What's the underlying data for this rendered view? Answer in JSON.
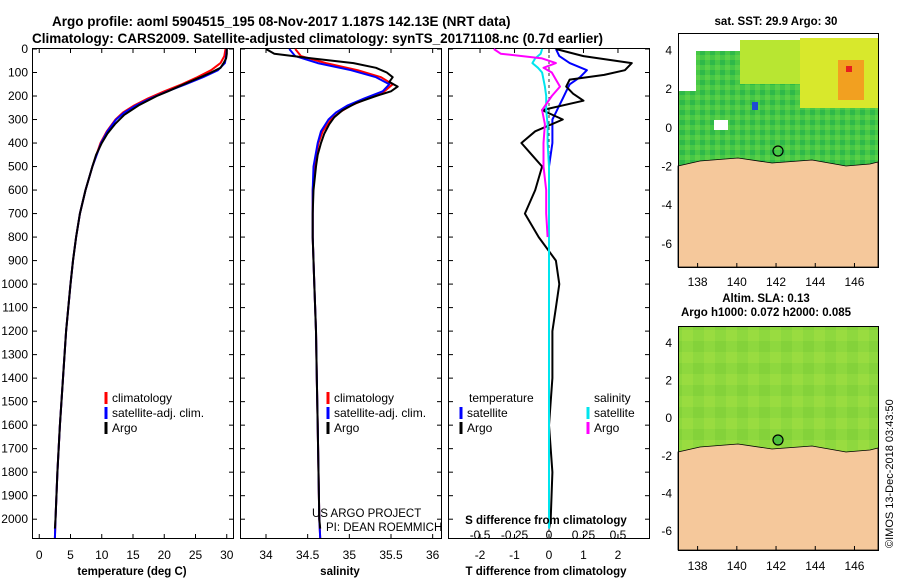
{
  "title": {
    "line1": "Argo profile: aoml 5904515_195 08-Nov-2017 1.187S 142.13E (NRT data)",
    "line2": "Climatology: CARS2009. Satellite-adjusted climatology: synTS_20171108.nc (0.7d earlier)"
  },
  "credit": {
    "line1": "US ARGO PROJECT",
    "line2": "PI: DEAN ROEMMICH"
  },
  "imos_stamp": "©IMOS 13-Dec-2018 03:43:50",
  "colors": {
    "climatology": "#ff0000",
    "satellite": "#0000ff",
    "argo": "#000000",
    "s_satellite": "#00e5ee",
    "s_argo": "#ff00ff",
    "land": "#f5c89b",
    "sea": "#7cd43a"
  },
  "maps": {
    "sst": {
      "title": "sat. SST: 29.9 Argo: 30",
      "float_marker": "dark green circle"
    },
    "sla": {
      "title_line1": "Altim. SLA: 0.13",
      "title_line2": "Argo h1000: 0.072 h2000: 0.085",
      "float_marker": "dark green circle"
    },
    "x_ticks": [
      "138",
      "140",
      "142",
      "144",
      "146"
    ],
    "y_ticks": [
      "4",
      "2",
      "0",
      "-2",
      "-4",
      "-6"
    ]
  },
  "chart_data": [
    {
      "type": "line",
      "panel": "temperature",
      "xlabel": "temperature (deg C)",
      "ylabel": "",
      "xlim": [
        -1,
        31
      ],
      "ylim": [
        2080,
        0
      ],
      "x_ticks": [
        "0",
        "5",
        "10",
        "15",
        "20",
        "25",
        "30"
      ],
      "y_ticks": [
        "0",
        "100",
        "200",
        "300",
        "400",
        "500",
        "600",
        "700",
        "800",
        "900",
        "1000",
        "1100",
        "1200",
        "1300",
        "1400",
        "1500",
        "1600",
        "1700",
        "1800",
        "1900",
        "2000"
      ],
      "legend": {
        "placement": "lower-middle",
        "entries": [
          "climatology",
          "satellite-adj. clim.",
          "Argo"
        ]
      },
      "series": [
        {
          "name": "climatology",
          "color": "#ff0000",
          "depth": [
            0,
            30,
            60,
            90,
            120,
            150,
            180,
            210,
            240,
            270,
            300,
            350,
            400,
            500,
            600,
            700,
            800,
            900,
            1000,
            1200,
            1400,
            1600,
            1800,
            2000,
            2080
          ],
          "values": [
            29.8,
            29.6,
            29.0,
            27.5,
            25.3,
            22.8,
            20.0,
            17.4,
            15.2,
            13.4,
            12.2,
            10.8,
            9.8,
            8.5,
            7.4,
            6.5,
            5.9,
            5.4,
            5.0,
            4.3,
            3.8,
            3.3,
            2.9,
            2.6,
            2.5
          ]
        },
        {
          "name": "satellite-adj. clim.",
          "color": "#0000ff",
          "depth": [
            0,
            30,
            60,
            90,
            120,
            150,
            180,
            210,
            240,
            270,
            300,
            350,
            400,
            500,
            600,
            700,
            800,
            900,
            1000,
            1200,
            1400,
            1600,
            1800,
            2000,
            2080
          ],
          "values": [
            30.0,
            29.9,
            29.7,
            28.6,
            26.2,
            23.4,
            20.5,
            17.8,
            15.5,
            13.6,
            12.3,
            10.9,
            9.9,
            8.5,
            7.4,
            6.5,
            5.9,
            5.4,
            5.0,
            4.3,
            3.8,
            3.3,
            2.9,
            2.6,
            2.5
          ]
        },
        {
          "name": "Argo",
          "color": "#000000",
          "depth": [
            0,
            20,
            40,
            60,
            80,
            100,
            120,
            140,
            160,
            180,
            200,
            240,
            280,
            320,
            360,
            400,
            450,
            500,
            600,
            700,
            800,
            900,
            1000,
            1200,
            1400,
            1600,
            1800,
            2000,
            2040
          ],
          "values": [
            30.0,
            30.0,
            29.9,
            29.5,
            29.0,
            27.5,
            25.8,
            24.0,
            22.3,
            20.6,
            18.8,
            15.9,
            13.6,
            12.1,
            10.9,
            10.0,
            9.1,
            8.5,
            7.4,
            6.5,
            5.9,
            5.4,
            5.0,
            4.3,
            3.8,
            3.3,
            2.9,
            2.6,
            2.5
          ]
        }
      ]
    },
    {
      "type": "line",
      "panel": "salinity",
      "xlabel": "salinity",
      "ylabel": "",
      "xlim": [
        33.7,
        36.1
      ],
      "ylim": [
        2080,
        0
      ],
      "x_ticks": [
        "34",
        "34.5",
        "35",
        "35.5",
        "36"
      ],
      "legend": {
        "placement": "lower-middle",
        "entries": [
          "climatology",
          "satellite-adj. clim.",
          "Argo"
        ]
      },
      "series": [
        {
          "name": "climatology",
          "color": "#ff0000",
          "depth": [
            0,
            30,
            60,
            90,
            120,
            150,
            180,
            210,
            240,
            270,
            300,
            350,
            400,
            500,
            600,
            700,
            800,
            900,
            1000,
            1200,
            1400,
            1600,
            1800,
            2000,
            2080
          ],
          "values": [
            34.35,
            34.42,
            34.72,
            35.1,
            35.38,
            35.52,
            35.42,
            35.22,
            35.02,
            34.88,
            34.78,
            34.68,
            34.63,
            34.58,
            34.56,
            34.56,
            34.56,
            34.57,
            34.58,
            34.6,
            34.61,
            34.62,
            34.63,
            34.64,
            34.65
          ]
        },
        {
          "name": "satellite-adj. clim.",
          "color": "#0000ff",
          "depth": [
            0,
            30,
            60,
            90,
            120,
            150,
            180,
            210,
            240,
            270,
            300,
            350,
            400,
            500,
            600,
            700,
            800,
            900,
            1000,
            1200,
            1400,
            1600,
            1800,
            2000,
            2080
          ],
          "values": [
            34.28,
            34.35,
            34.62,
            35.02,
            35.32,
            35.48,
            35.4,
            35.18,
            34.98,
            34.84,
            34.75,
            34.66,
            34.62,
            34.57,
            34.56,
            34.56,
            34.56,
            34.57,
            34.58,
            34.6,
            34.61,
            34.62,
            34.63,
            34.64,
            34.65
          ]
        },
        {
          "name": "Argo",
          "color": "#000000",
          "depth": [
            0,
            20,
            40,
            60,
            80,
            100,
            120,
            140,
            160,
            180,
            200,
            230,
            260,
            290,
            320,
            360,
            400,
            450,
            500,
            600,
            700,
            800,
            900,
            1000,
            1200,
            1400,
            1600,
            1800,
            2000,
            2040
          ],
          "values": [
            34.0,
            34.1,
            34.55,
            35.05,
            35.32,
            35.45,
            35.52,
            35.48,
            35.58,
            35.5,
            35.32,
            35.08,
            34.92,
            34.82,
            34.76,
            34.7,
            34.66,
            34.62,
            34.6,
            34.57,
            34.56,
            34.56,
            34.57,
            34.58,
            34.6,
            34.61,
            34.62,
            34.63,
            34.64,
            34.65
          ]
        }
      ]
    },
    {
      "type": "line",
      "panel": "difference",
      "xlabel": "T difference from climatology",
      "ylabel": "",
      "top_label": "S difference from climatology",
      "xlim": [
        -2.9,
        2.9
      ],
      "ylim": [
        2080,
        0
      ],
      "x_ticks": [
        "-2",
        "-1",
        "0",
        "1",
        "2"
      ],
      "x_ticks_top": [
        "-0.5",
        "-0.25",
        "0",
        "0.25",
        "0.5"
      ],
      "legend_left": {
        "title": "temperature",
        "entries": [
          "satellite",
          "Argo"
        ]
      },
      "legend_right": {
        "title": "salinity",
        "entries": [
          "satellite",
          "Argo"
        ]
      },
      "series": [
        {
          "name": "temperature satellite",
          "color": "#0000ff",
          "depth": [
            0,
            30,
            60,
            90,
            120,
            150,
            180,
            210,
            240,
            270,
            300,
            350,
            400,
            500,
            600,
            800,
            1000,
            1400,
            2000,
            2040
          ],
          "values": [
            0.2,
            0.3,
            0.6,
            1.1,
            0.9,
            0.6,
            0.5,
            0.4,
            0.3,
            0.2,
            0.1,
            0.1,
            0.1,
            0.0,
            0.0,
            0.0,
            0.0,
            0.0,
            0.0,
            0.0
          ]
        },
        {
          "name": "temperature Argo",
          "color": "#000000",
          "depth": [
            0,
            30,
            60,
            90,
            110,
            130,
            160,
            190,
            220,
            260,
            300,
            350,
            400,
            450,
            500,
            600,
            700,
            800,
            900,
            1000,
            1100,
            1200,
            1400,
            1600,
            1800,
            2000,
            2040
          ],
          "values": [
            0.2,
            1.0,
            2.4,
            2.2,
            1.6,
            0.6,
            0.5,
            0.7,
            1.0,
            -0.2,
            0.4,
            -0.4,
            -0.8,
            -0.5,
            -0.2,
            -0.4,
            -0.7,
            -0.3,
            0.2,
            0.3,
            0.2,
            0.1,
            0.1,
            0.0,
            0.1,
            0.05,
            0.0
          ]
        },
        {
          "name": "salinity satellite",
          "color": "#00e5ee",
          "depth": [
            0,
            20,
            40,
            60,
            80,
            100,
            130,
            160,
            200,
            260,
            320,
            400,
            500,
            600,
            800,
            1000,
            1400,
            2000,
            2040
          ],
          "values": [
            -0.05,
            -0.06,
            -0.1,
            -0.12,
            -0.08,
            -0.05,
            -0.04,
            -0.03,
            -0.02,
            -0.02,
            -0.01,
            -0.01,
            0.0,
            0.0,
            0.0,
            0.0,
            0.0,
            0.0,
            0.0
          ]
        },
        {
          "name": "salinity Argo",
          "color": "#ff00ff",
          "depth": [
            0,
            20,
            40,
            60,
            80,
            100,
            130,
            160,
            200,
            260,
            320,
            400,
            500,
            600,
            700,
            800
          ],
          "values": [
            -0.4,
            -0.35,
            -0.05,
            0.05,
            -0.04,
            0.02,
            0.05,
            0.08,
            0.02,
            -0.05,
            -0.03,
            -0.04,
            -0.04,
            -0.02,
            -0.02,
            -0.01
          ]
        }
      ]
    }
  ]
}
